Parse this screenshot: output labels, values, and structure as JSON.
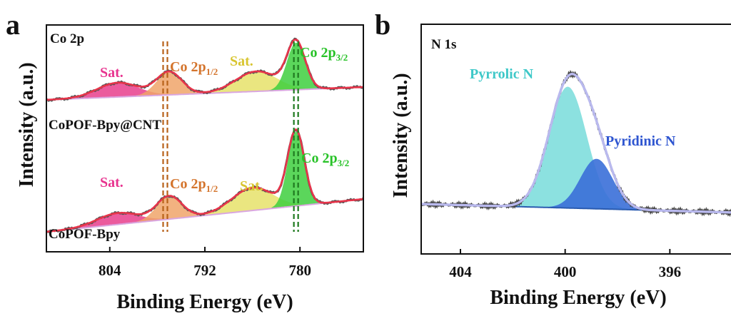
{
  "chart_data": [
    {
      "panel": "a",
      "type": "line",
      "spectrum_label": "Co 2p",
      "xlabel": "Binding Energy (eV)",
      "ylabel": "Intensity (a.u.)",
      "xlim": [
        812,
        772
      ],
      "x_reversed": true,
      "xticks": [
        804,
        792,
        780
      ],
      "xticks_labels": [
        "804",
        "792",
        "780"
      ],
      "dashed_markers": [
        {
          "x": 797.0,
          "color": "#b8621a"
        },
        {
          "x": 780.5,
          "color": "#1f7a1f"
        }
      ],
      "spectra": [
        {
          "name": "CoPOF-Bpy@CNT",
          "components": [
            {
              "label": "Sat.",
              "center": 803.0,
              "color": "#e83e8c",
              "label_color": "#e8338f"
            },
            {
              "label": "Co 2p1/2",
              "label_main": "Co 2p",
              "label_sub": "1/2",
              "center": 796.5,
              "color": "#f0a46a",
              "label_color": "#d4742c"
            },
            {
              "label": "Sat.",
              "center": 785.5,
              "color": "#e6e26a",
              "label_color": "#d8c530"
            },
            {
              "label": "Co 2p3/2",
              "label_main": "Co 2p",
              "label_sub": "3/2",
              "center": 780.5,
              "color": "#3ecf3e",
              "label_color": "#27c227"
            }
          ]
        },
        {
          "name": "CoPOF-Bpy",
          "components": [
            {
              "label": "Sat.",
              "center": 803.0,
              "color": "#e83e8c",
              "label_color": "#e8338f"
            },
            {
              "label": "Co 2p1/2",
              "label_main": "Co 2p",
              "label_sub": "1/2",
              "center": 796.5,
              "color": "#f0a46a",
              "label_color": "#d4742c"
            },
            {
              "label": "Sat.",
              "center": 786.0,
              "color": "#e6e26a",
              "label_color": "#d8c530"
            },
            {
              "label": "Co 2p3/2",
              "label_main": "Co 2p",
              "label_sub": "3/2",
              "center": 780.5,
              "color": "#3ecf3e",
              "label_color": "#27c227"
            }
          ]
        }
      ]
    },
    {
      "panel": "b",
      "type": "line",
      "spectrum_label": "N 1s",
      "xlabel": "Binding Energy (eV)",
      "ylabel": "Intensity (a.u.)",
      "xlim": [
        405.5,
        393.5
      ],
      "x_reversed": true,
      "xticks": [
        404,
        400,
        396
      ],
      "xticks_labels": [
        "404",
        "400",
        "396"
      ],
      "components": [
        {
          "label": "Pyrrolic N",
          "center": 399.9,
          "color": "#7fdedd",
          "label_color": "#3ec8c8"
        },
        {
          "label": "Pyridinic N",
          "center": 398.8,
          "color": "#3a6fd8",
          "label_color": "#2e55d0"
        }
      ]
    }
  ]
}
